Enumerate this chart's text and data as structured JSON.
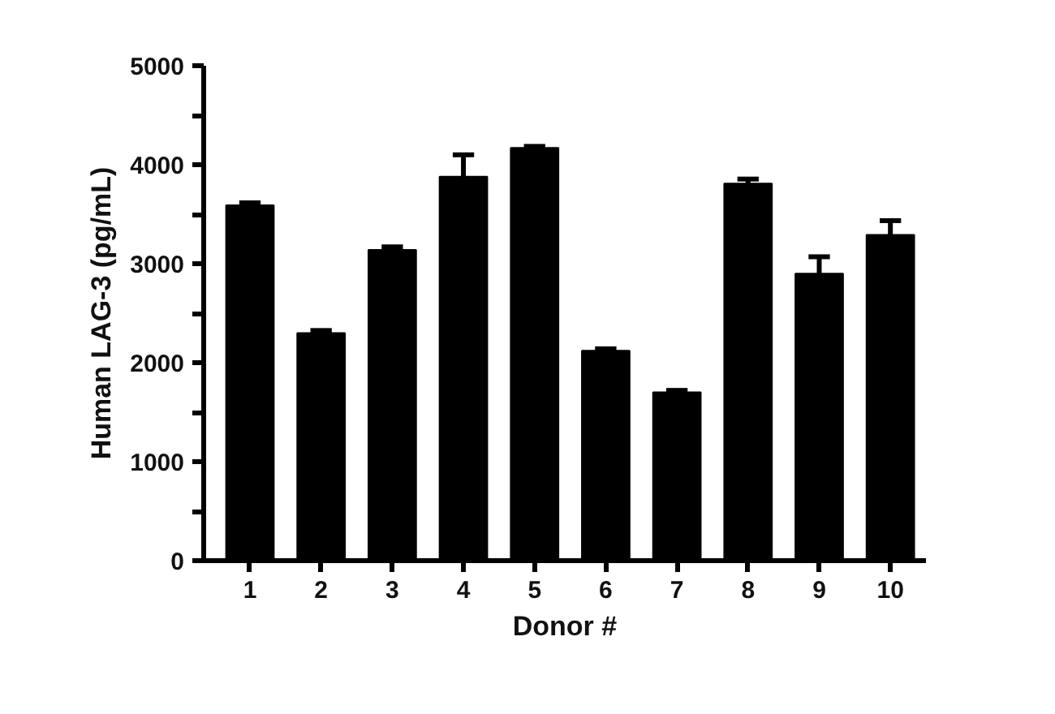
{
  "chart_data": {
    "type": "bar",
    "xlabel": "Donor #",
    "ylabel": "Human LAG-3 (pg/mL)",
    "categories": [
      "1",
      "2",
      "3",
      "4",
      "5",
      "6",
      "7",
      "8",
      "9",
      "10"
    ],
    "values": [
      3590,
      2300,
      3140,
      3880,
      4170,
      2120,
      1700,
      3810,
      2900,
      3290
    ],
    "errors": [
      25,
      25,
      30,
      220,
      15,
      20,
      20,
      45,
      170,
      145
    ],
    "color": "#000000",
    "ylim": [
      0,
      5000
    ],
    "yticks": [
      0,
      1000,
      2000,
      3000,
      4000,
      5000
    ],
    "grid": false
  }
}
